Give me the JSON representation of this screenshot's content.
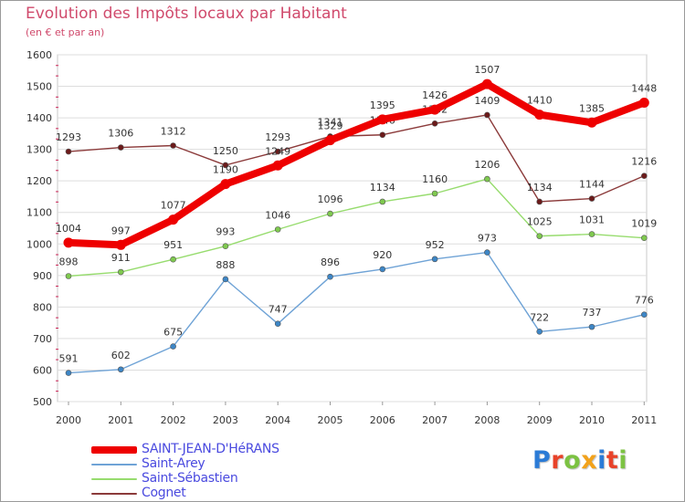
{
  "title": "Evolution des Impôts locaux par Habitant",
  "subtitle": "(en € et par an)",
  "logo": {
    "text": "Proxiti",
    "letters": [
      {
        "ch": "P",
        "color": "#2b7bd6"
      },
      {
        "ch": "r",
        "color": "#e8432a"
      },
      {
        "ch": "o",
        "color": "#7cc242"
      },
      {
        "ch": "x",
        "color": "#f2a21b"
      },
      {
        "ch": "i",
        "color": "#2b7bd6"
      },
      {
        "ch": "t",
        "color": "#e8432a"
      },
      {
        "ch": "i",
        "color": "#7cc242"
      }
    ]
  },
  "chart_data": {
    "type": "line",
    "title": "Evolution des Impôts locaux par Habitant",
    "subtitle": "(en € et par an)",
    "xlabel": "",
    "ylabel": "",
    "x": [
      "2000",
      "2001",
      "2002",
      "2003",
      "2004",
      "2005",
      "2006",
      "2007",
      "2008",
      "2009",
      "2010",
      "2011"
    ],
    "ylim": [
      500,
      1600
    ],
    "yticks": [
      500,
      600,
      700,
      800,
      900,
      1000,
      1100,
      1200,
      1300,
      1400,
      1500,
      1600
    ],
    "grid": "horizontal",
    "legend": "bottom-left",
    "series": [
      {
        "name": "SAINT-JEAN-D'HéRANS",
        "color": "#ee0000",
        "marker": "#ee0000",
        "values": [
          1004,
          997,
          1077,
          1190,
          1249,
          1329,
          1395,
          1426,
          1507,
          1410,
          1385,
          1448
        ]
      },
      {
        "name": "Saint-Arey",
        "color": "#6fa3d6",
        "marker": "#3d86c6",
        "values": [
          591,
          602,
          675,
          888,
          747,
          896,
          920,
          952,
          973,
          722,
          737,
          776
        ]
      },
      {
        "name": "Saint-Sébastien",
        "color": "#97dc6e",
        "marker": "#7fc94f",
        "values": [
          898,
          911,
          951,
          993,
          1046,
          1096,
          1134,
          1160,
          1206,
          1025,
          1031,
          1019
        ]
      },
      {
        "name": "Cognet",
        "color": "#8b3a3a",
        "marker": "#6b1a1a",
        "values": [
          1293,
          1306,
          1312,
          1250,
          1293,
          1341,
          1346,
          1382,
          1409,
          1134,
          1144,
          1216
        ]
      }
    ]
  }
}
